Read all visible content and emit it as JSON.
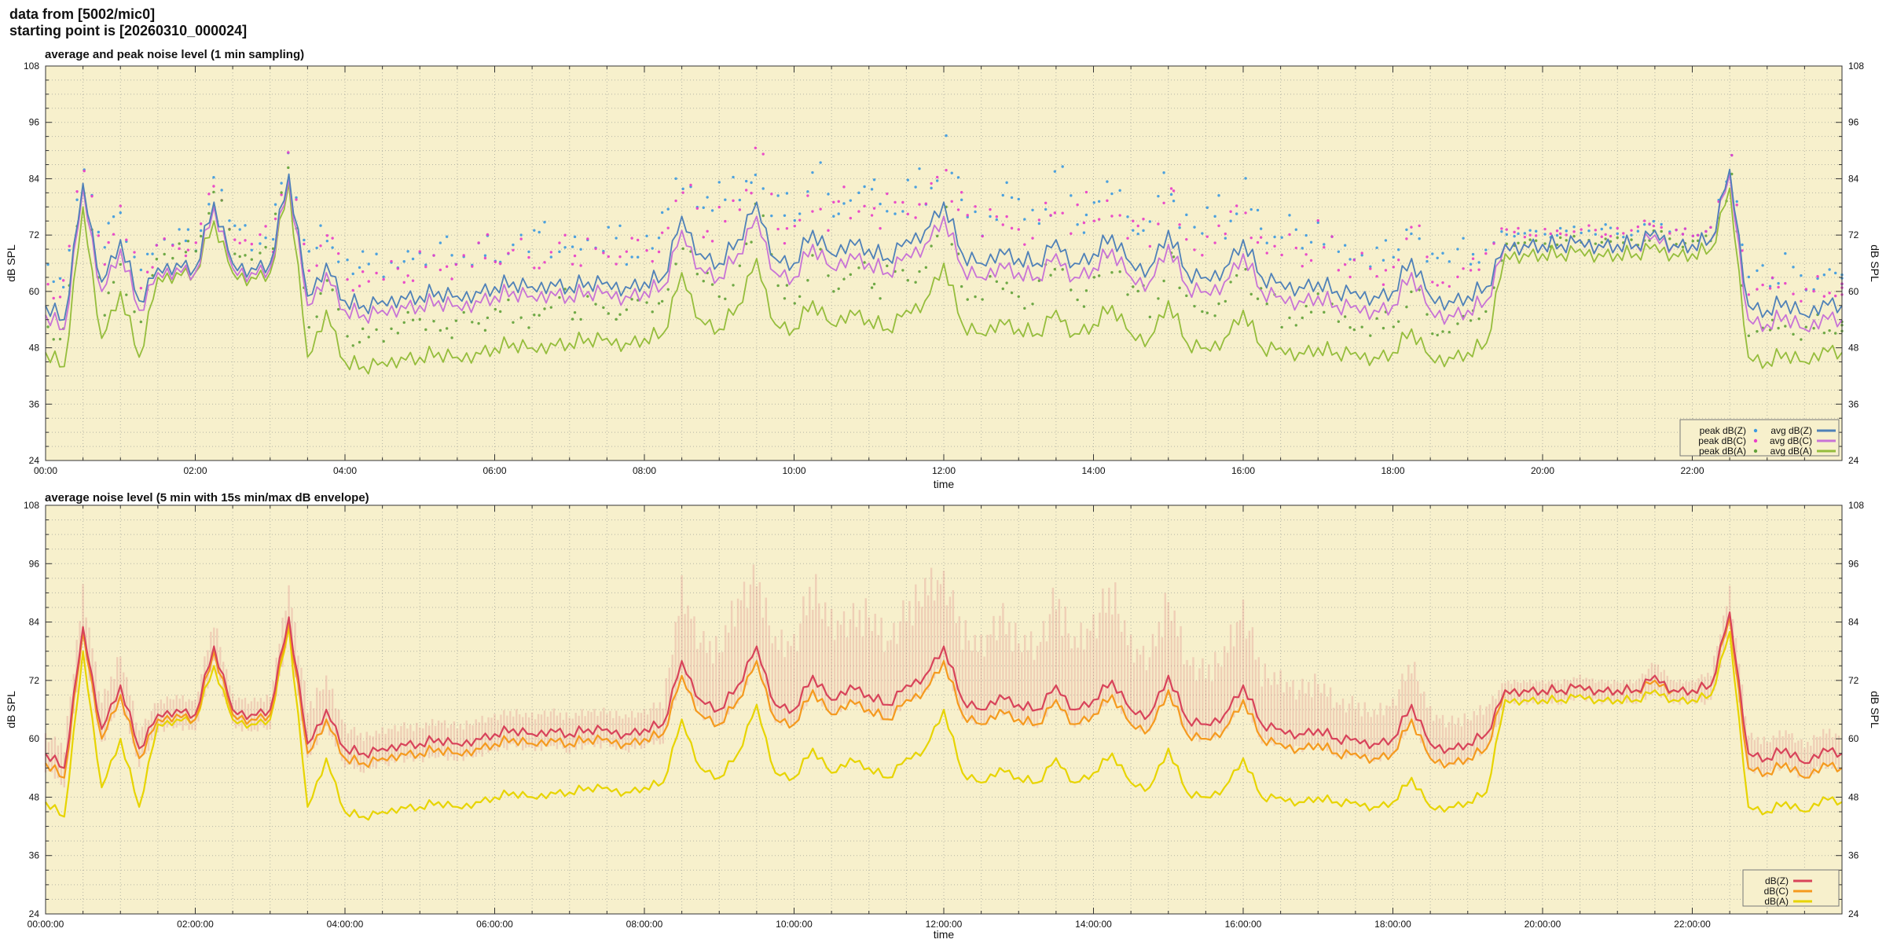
{
  "page": {
    "header_line1": "data from [5002/mic0]",
    "header_line2": "starting point is [20260310_000024]"
  },
  "colors": {
    "page_bg": "#ffffff",
    "plot_bg": "#f7f0cc",
    "grid": "#b5b5a5",
    "border": "#333333",
    "text": "#111111",
    "legend_border": "#777777"
  },
  "chart_data": [
    {
      "type": "line+scatter",
      "title": "average and peak noise level (1 min sampling)",
      "xlabel": "time",
      "ylabel": "dB SPL",
      "xlim_hours": [
        0,
        24
      ],
      "ylim": [
        24,
        108
      ],
      "y_ticks": [
        24,
        36,
        48,
        60,
        72,
        84,
        96,
        108
      ],
      "y_minor_step": 3,
      "x_minor_step_hours": 0.5,
      "x_tick_hours": [
        0,
        2,
        4,
        6,
        8,
        10,
        12,
        14,
        16,
        18,
        20,
        22
      ],
      "x_tick_labels": [
        "00:00",
        "02:00",
        "04:00",
        "06:00",
        "08:00",
        "10:00",
        "12:00",
        "14:00",
        "16:00",
        "18:00",
        "20:00",
        "22:00"
      ],
      "grid": true,
      "legend_position": "bottom-right",
      "series": [
        {
          "name": "peak dB(Z)",
          "kind": "scatter",
          "color": "#3d9ae0",
          "base_key": "z",
          "offsets_key": "peak_off_z"
        },
        {
          "name": "peak dB(C)",
          "kind": "scatter",
          "color": "#e83fc8",
          "base_key": "c",
          "offsets_key": "peak_off_c"
        },
        {
          "name": "peak dB(A)",
          "kind": "scatter",
          "color": "#63a33b",
          "base_key": "a",
          "offsets_key": "peak_off_a"
        },
        {
          "name": "avg dB(Z)",
          "kind": "line",
          "color": "#4f81b8",
          "jitter": 2.2,
          "values_key": "z"
        },
        {
          "name": "avg dB(C)",
          "kind": "line",
          "color": "#c873d6",
          "jitter": 2.2,
          "values_key": "c"
        },
        {
          "name": "avg dB(A)",
          "kind": "line",
          "color": "#95bd3c",
          "jitter": 2.0,
          "values_key": "a"
        }
      ]
    },
    {
      "type": "line+envelope",
      "title": "average noise level (5 min with 15s min/max dB envelope)",
      "xlabel": "time",
      "ylabel": "dB SPL",
      "xlim_hours": [
        0,
        24
      ],
      "ylim": [
        24,
        108
      ],
      "y_ticks": [
        24,
        36,
        48,
        60,
        72,
        84,
        96,
        108
      ],
      "y_minor_step": 3,
      "x_minor_step_hours": 0.5,
      "x_tick_hours": [
        0,
        2,
        4,
        6,
        8,
        10,
        12,
        14,
        16,
        18,
        20,
        22
      ],
      "x_tick_labels": [
        "00:00:00",
        "02:00:00",
        "04:00:00",
        "06:00:00",
        "08:00:00",
        "10:00:00",
        "12:00:00",
        "14:00:00",
        "16:00:00",
        "18:00:00",
        "20:00:00",
        "22:00:00"
      ],
      "grid": true,
      "legend_position": "bottom-right",
      "series": [
        {
          "name": "dB(Z)",
          "kind": "line",
          "color": "#d8435a",
          "jitter": 1.2,
          "values_key": "z",
          "envelope": {
            "up_key": "env_up",
            "color": "#de8383",
            "max_down": 4
          }
        },
        {
          "name": "dB(C)",
          "kind": "line",
          "color": "#f59a1e",
          "jitter": 1.2,
          "values_key": "c"
        },
        {
          "name": "dB(A)",
          "kind": "line",
          "color": "#e7d400",
          "jitter": 1.0,
          "values_key": "a"
        }
      ]
    }
  ],
  "series_values": {
    "x_start_hours": 0,
    "x_step_hours": 0.25,
    "z": [
      57,
      54,
      83,
      62,
      71,
      58,
      65,
      66,
      65,
      79,
      66,
      65,
      66,
      85,
      59,
      66,
      58,
      57,
      58,
      59,
      59,
      60,
      59,
      60,
      61,
      62,
      61,
      62,
      61,
      62,
      62,
      61,
      62,
      63,
      76,
      68,
      66,
      71,
      79,
      67,
      66,
      73,
      68,
      71,
      69,
      67,
      71,
      73,
      79,
      68,
      66,
      69,
      67,
      66,
      71,
      66,
      68,
      72,
      66,
      65,
      73,
      64,
      63,
      65,
      71,
      63,
      62,
      61,
      62,
      60,
      60,
      59,
      60,
      67,
      59,
      58,
      59,
      61,
      70,
      70,
      70,
      70,
      71,
      70,
      70,
      70,
      73,
      70,
      70,
      71,
      86,
      57,
      56,
      58,
      55,
      58,
      57
    ],
    "c": [
      55,
      52,
      82,
      60,
      69,
      56,
      64,
      65,
      64,
      78,
      65,
      64,
      65,
      84,
      57,
      64,
      56,
      55,
      56,
      57,
      57,
      58,
      57,
      58,
      59,
      60,
      59,
      60,
      59,
      60,
      60,
      59,
      60,
      61,
      73,
      65,
      63,
      68,
      76,
      64,
      63,
      70,
      65,
      68,
      66,
      64,
      68,
      70,
      76,
      65,
      63,
      66,
      64,
      63,
      68,
      63,
      65,
      69,
      63,
      62,
      70,
      61,
      60,
      62,
      68,
      60,
      59,
      58,
      59,
      57,
      57,
      56,
      57,
      64,
      56,
      55,
      56,
      58,
      70,
      70,
      70,
      70,
      71,
      70,
      70,
      70,
      72,
      70,
      70,
      71,
      85,
      54,
      53,
      55,
      52,
      55,
      54
    ],
    "a": [
      47,
      44,
      78,
      50,
      60,
      46,
      63,
      64,
      64,
      75,
      64,
      63,
      64,
      83,
      46,
      56,
      45,
      44,
      45,
      46,
      46,
      47,
      46,
      47,
      48,
      49,
      48,
      49,
      49,
      50,
      50,
      49,
      50,
      51,
      64,
      54,
      52,
      57,
      67,
      53,
      52,
      58,
      53,
      56,
      54,
      52,
      56,
      58,
      66,
      53,
      51,
      54,
      52,
      51,
      56,
      51,
      53,
      57,
      51,
      50,
      58,
      49,
      48,
      50,
      56,
      48,
      48,
      47,
      48,
      47,
      47,
      46,
      47,
      52,
      46,
      46,
      47,
      49,
      68,
      68,
      68,
      68,
      69,
      68,
      68,
      68,
      70,
      68,
      68,
      69,
      82,
      46,
      45,
      47,
      45,
      48,
      47
    ],
    "peak_off_z": [
      8,
      6,
      4,
      9,
      5,
      7,
      5,
      7,
      4,
      6,
      8,
      5,
      6,
      4,
      9,
      6,
      8,
      10,
      7,
      9,
      8,
      11,
      7,
      10,
      6,
      9,
      12,
      7,
      10,
      8,
      11,
      6,
      9,
      12,
      8,
      12,
      15,
      9,
      6,
      13,
      10,
      14,
      8,
      11,
      15,
      9,
      12,
      7,
      13,
      10,
      8,
      14,
      11,
      9,
      15,
      8,
      12,
      10,
      7,
      13,
      9,
      11,
      14,
      8,
      12,
      9,
      13,
      10,
      11,
      9,
      7,
      10,
      8,
      6,
      9,
      11,
      8,
      7,
      2,
      3,
      2,
      3,
      2,
      4,
      2,
      3,
      2,
      3,
      2,
      3,
      3,
      8,
      6,
      9,
      5,
      7,
      6
    ],
    "peak_off_c": [
      6,
      9,
      5,
      7,
      8,
      5,
      6,
      4,
      7,
      5,
      6,
      8,
      4,
      5,
      7,
      10,
      6,
      8,
      9,
      6,
      10,
      7,
      9,
      12,
      8,
      10,
      6,
      11,
      8,
      10,
      7,
      12,
      8,
      10,
      11,
      8,
      13,
      10,
      15,
      9,
      12,
      8,
      14,
      10,
      12,
      15,
      8,
      11,
      9,
      14,
      12,
      10,
      8,
      13,
      9,
      15,
      11,
      8,
      12,
      10,
      14,
      9,
      11,
      13,
      8,
      10,
      12,
      9,
      14,
      8,
      10,
      7,
      9,
      11,
      6,
      8,
      10,
      9,
      3,
      2,
      3,
      2,
      3,
      2,
      3,
      4,
      2,
      3,
      2,
      3,
      4,
      7,
      9,
      6,
      8,
      5,
      7
    ],
    "peak_off_a": [
      5,
      7,
      4,
      6,
      5,
      8,
      4,
      6,
      5,
      7,
      4,
      5,
      6,
      3,
      6,
      8,
      5,
      7,
      6,
      9,
      7,
      5,
      8,
      6,
      9,
      5,
      7,
      10,
      6,
      8,
      5,
      9,
      7,
      6,
      7,
      10,
      6,
      9,
      12,
      8,
      6,
      11,
      7,
      10,
      8,
      12,
      6,
      9,
      11,
      7,
      10,
      8,
      6,
      12,
      9,
      7,
      11,
      8,
      10,
      6,
      12,
      9,
      7,
      10,
      8,
      11,
      6,
      9,
      10,
      7,
      5,
      8,
      6,
      9,
      5,
      7,
      8,
      6,
      2,
      3,
      2,
      3,
      2,
      3,
      3,
      2,
      3,
      2,
      3,
      2,
      3,
      6,
      8,
      5,
      7,
      4,
      6
    ],
    "env_up": [
      4,
      5,
      8,
      6,
      7,
      4,
      3,
      3,
      3,
      6,
      3,
      3,
      3,
      7,
      8,
      7,
      5,
      4,
      4,
      4,
      4,
      4,
      4,
      4,
      4,
      4,
      4,
      4,
      4,
      4,
      4,
      4,
      4,
      5,
      16,
      13,
      14,
      19,
      16,
      14,
      15,
      21,
      17,
      15,
      19,
      14,
      17,
      20,
      15,
      16,
      14,
      18,
      15,
      14,
      20,
      15,
      17,
      21,
      14,
      13,
      18,
      13,
      12,
      14,
      17,
      12,
      11,
      10,
      11,
      8,
      8,
      7,
      8,
      10,
      7,
      6,
      6,
      6,
      2,
      2,
      2,
      2,
      2,
      2,
      2,
      2,
      3,
      2,
      2,
      3,
      5,
      4,
      4,
      4,
      4,
      4,
      4
    ],
    "jitter_pattern": [
      0.3,
      -0.7,
      0.9,
      -0.4,
      0.1,
      -0.9,
      0.6,
      -0.2,
      0.8,
      -0.6,
      0.2,
      -1.0,
      0.7,
      -0.3,
      0.5,
      -0.8
    ],
    "texture_pattern": [
      0.9,
      0.35,
      0.7,
      1.0,
      0.5,
      0.8,
      0.3,
      0.95,
      0.6,
      0.45,
      0.85,
      0.55,
      1.0,
      0.4,
      0.75,
      0.65
    ]
  }
}
